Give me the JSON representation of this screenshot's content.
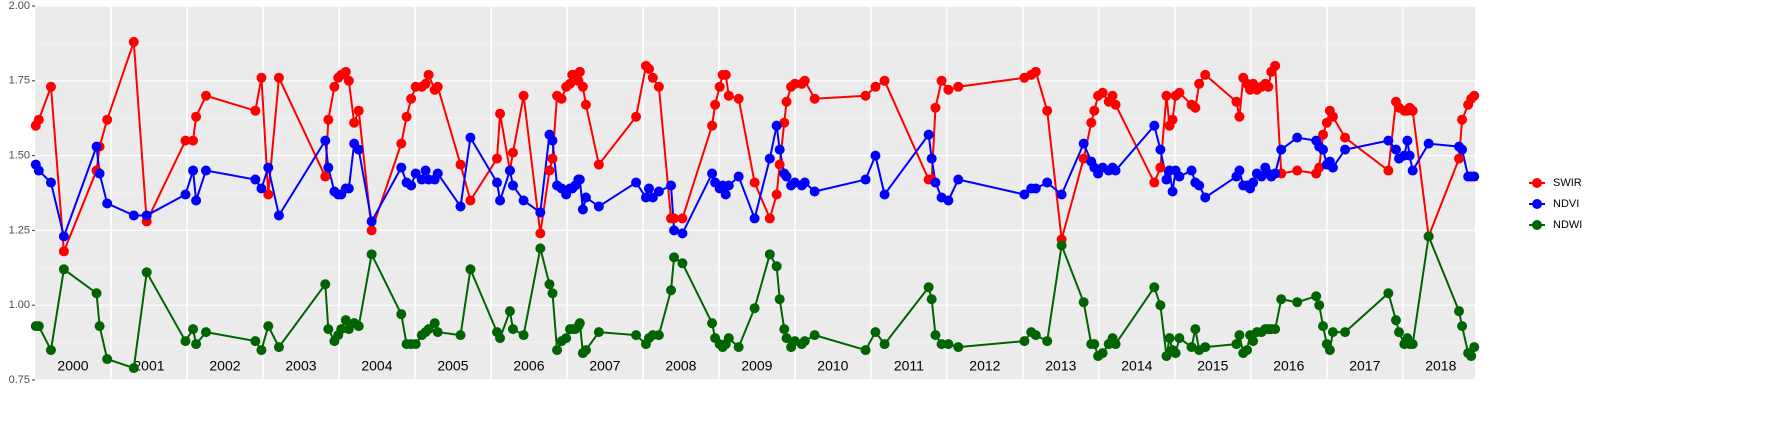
{
  "chart_data": {
    "type": "line",
    "x": [
      2000.01,
      2000.05,
      2000.21,
      2000.38,
      2000.81,
      2000.85,
      2000.95,
      2001.3,
      2001.47,
      2001.98,
      2002.08,
      2002.12,
      2002.25,
      2002.9,
      2002.98,
      2003.07,
      2003.21,
      2003.82,
      2003.86,
      2003.94,
      2003.99,
      2004.03,
      2004.09,
      2004.13,
      2004.2,
      2004.26,
      2004.43,
      2004.82,
      2004.89,
      2004.95,
      2005.01,
      2005.09,
      2005.14,
      2005.18,
      2005.26,
      2005.3,
      2005.6,
      2005.73,
      2006.08,
      2006.12,
      2006.25,
      2006.29,
      2006.43,
      2006.65,
      2006.77,
      2006.81,
      2006.87,
      2006.93,
      2006.99,
      2007.04,
      2007.07,
      2007.11,
      2007.15,
      2007.17,
      2007.21,
      2007.25,
      2007.42,
      2007.91,
      2008.04,
      2008.08,
      2008.13,
      2008.21,
      2008.37,
      2008.41,
      2008.52,
      2008.91,
      2008.95,
      2009.01,
      2009.05,
      2009.09,
      2009.13,
      2009.26,
      2009.47,
      2009.67,
      2009.76,
      2009.8,
      2009.86,
      2009.89,
      2009.95,
      2010.0,
      2010.09,
      2010.13,
      2010.26,
      2010.93,
      2011.06,
      2011.18,
      2011.76,
      2011.8,
      2011.85,
      2011.93,
      2012.02,
      2012.15,
      2013.02,
      2013.11,
      2013.17,
      2013.32,
      2013.51,
      2013.8,
      2013.9,
      2013.94,
      2013.99,
      2014.05,
      2014.13,
      2014.18,
      2014.22,
      2014.73,
      2014.81,
      2014.89,
      2014.93,
      2014.97,
      2015.01,
      2015.06,
      2015.22,
      2015.27,
      2015.32,
      2015.4,
      2015.81,
      2015.85,
      2015.9,
      2015.95,
      2015.99,
      2016.03,
      2016.08,
      2016.14,
      2016.19,
      2016.23,
      2016.27,
      2016.32,
      2016.4,
      2016.61,
      2016.86,
      2016.9,
      2016.95,
      2017.0,
      2017.04,
      2017.08,
      2017.24,
      2017.81,
      2017.91,
      2017.95,
      2018.02,
      2018.06,
      2018.09,
      2018.13,
      2018.34,
      2018.74,
      2018.78,
      2018.86,
      2018.9,
      2018.94
    ],
    "series": [
      {
        "name": "SWIR",
        "color": "#ff0000",
        "values": [
          1.6,
          1.62,
          1.73,
          1.18,
          1.45,
          1.53,
          1.62,
          1.88,
          1.28,
          1.55,
          1.55,
          1.63,
          1.7,
          1.65,
          1.76,
          1.37,
          1.76,
          1.43,
          1.62,
          1.73,
          1.76,
          1.77,
          1.78,
          1.75,
          1.61,
          1.65,
          1.25,
          1.54,
          1.63,
          1.69,
          1.73,
          1.73,
          1.74,
          1.77,
          1.72,
          1.73,
          1.47,
          1.35,
          1.49,
          1.64,
          1.45,
          1.51,
          1.7,
          1.24,
          1.45,
          1.49,
          1.7,
          1.69,
          1.73,
          1.74,
          1.77,
          1.77,
          1.75,
          1.78,
          1.73,
          1.67,
          1.47,
          1.63,
          1.8,
          1.79,
          1.76,
          1.73,
          1.29,
          1.29,
          1.29,
          1.6,
          1.67,
          1.73,
          1.77,
          1.77,
          1.7,
          1.69,
          1.41,
          1.29,
          1.37,
          1.47,
          1.61,
          1.68,
          1.73,
          1.74,
          1.74,
          1.75,
          1.69,
          1.7,
          1.73,
          1.75,
          1.42,
          1.42,
          1.66,
          1.75,
          1.72,
          1.73,
          1.76,
          1.77,
          1.78,
          1.65,
          1.22,
          1.49,
          1.61,
          1.65,
          1.7,
          1.71,
          1.68,
          1.7,
          1.67,
          1.41,
          1.46,
          1.7,
          1.6,
          1.62,
          1.7,
          1.71,
          1.67,
          1.66,
          1.74,
          1.77,
          1.68,
          1.63,
          1.76,
          1.74,
          1.72,
          1.74,
          1.72,
          1.73,
          1.74,
          1.73,
          1.78,
          1.8,
          1.44,
          1.45,
          1.44,
          1.46,
          1.57,
          1.61,
          1.65,
          1.63,
          1.56,
          1.45,
          1.68,
          1.66,
          1.65,
          1.65,
          1.66,
          1.65,
          1.23,
          1.49,
          1.62,
          1.67,
          1.69,
          1.7
        ]
      },
      {
        "name": "NDVI",
        "color": "#0000ff",
        "values": [
          1.47,
          1.45,
          1.41,
          1.23,
          1.53,
          1.44,
          1.34,
          1.3,
          1.3,
          1.37,
          1.45,
          1.35,
          1.45,
          1.42,
          1.39,
          1.46,
          1.3,
          1.55,
          1.46,
          1.38,
          1.37,
          1.37,
          1.39,
          1.39,
          1.54,
          1.52,
          1.28,
          1.46,
          1.41,
          1.4,
          1.44,
          1.42,
          1.45,
          1.42,
          1.42,
          1.44,
          1.33,
          1.56,
          1.41,
          1.35,
          1.45,
          1.4,
          1.35,
          1.31,
          1.57,
          1.55,
          1.4,
          1.39,
          1.37,
          1.39,
          1.39,
          1.4,
          1.42,
          1.42,
          1.32,
          1.36,
          1.33,
          1.41,
          1.36,
          1.39,
          1.36,
          1.38,
          1.4,
          1.25,
          1.24,
          1.44,
          1.41,
          1.39,
          1.4,
          1.37,
          1.4,
          1.43,
          1.29,
          1.49,
          1.6,
          1.52,
          1.44,
          1.43,
          1.4,
          1.41,
          1.4,
          1.41,
          1.38,
          1.42,
          1.5,
          1.37,
          1.57,
          1.49,
          1.41,
          1.36,
          1.35,
          1.42,
          1.37,
          1.39,
          1.39,
          1.41,
          1.37,
          1.54,
          1.48,
          1.46,
          1.44,
          1.46,
          1.45,
          1.46,
          1.45,
          1.6,
          1.52,
          1.42,
          1.45,
          1.38,
          1.45,
          1.43,
          1.45,
          1.41,
          1.4,
          1.36,
          1.43,
          1.45,
          1.4,
          1.4,
          1.39,
          1.41,
          1.44,
          1.43,
          1.46,
          1.44,
          1.43,
          1.44,
          1.52,
          1.56,
          1.55,
          1.53,
          1.52,
          1.47,
          1.48,
          1.46,
          1.52,
          1.55,
          1.52,
          1.49,
          1.5,
          1.55,
          1.5,
          1.45,
          1.54,
          1.53,
          1.52,
          1.43,
          1.43,
          1.43
        ]
      },
      {
        "name": "NDWI",
        "color": "#006400",
        "values": [
          0.93,
          0.93,
          0.85,
          1.12,
          1.04,
          0.93,
          0.82,
          0.79,
          1.11,
          0.88,
          0.92,
          0.87,
          0.91,
          0.88,
          0.85,
          0.93,
          0.86,
          1.07,
          0.92,
          0.88,
          0.9,
          0.92,
          0.95,
          0.92,
          0.94,
          0.93,
          1.17,
          0.97,
          0.87,
          0.87,
          0.87,
          0.9,
          0.91,
          0.92,
          0.94,
          0.91,
          0.9,
          1.12,
          0.91,
          0.89,
          0.98,
          0.92,
          0.9,
          1.19,
          1.07,
          1.04,
          0.85,
          0.88,
          0.89,
          0.92,
          0.92,
          0.92,
          0.93,
          0.94,
          0.84,
          0.85,
          0.91,
          0.9,
          0.87,
          0.89,
          0.9,
          0.9,
          1.05,
          1.16,
          1.14,
          0.94,
          0.89,
          0.87,
          0.86,
          0.87,
          0.89,
          0.86,
          0.99,
          1.17,
          1.13,
          1.02,
          0.92,
          0.89,
          0.86,
          0.88,
          0.87,
          0.88,
          0.9,
          0.85,
          0.91,
          0.87,
          1.06,
          1.02,
          0.9,
          0.87,
          0.87,
          0.86,
          0.88,
          0.91,
          0.9,
          0.88,
          1.2,
          1.01,
          0.87,
          0.87,
          0.83,
          0.84,
          0.87,
          0.89,
          0.87,
          1.06,
          1.0,
          0.83,
          0.89,
          0.85,
          0.84,
          0.89,
          0.86,
          0.92,
          0.85,
          0.86,
          0.87,
          0.9,
          0.84,
          0.85,
          0.9,
          0.88,
          0.91,
          0.91,
          0.92,
          0.92,
          0.92,
          0.92,
          1.02,
          1.01,
          1.03,
          1.0,
          0.93,
          0.87,
          0.85,
          0.91,
          0.91,
          1.04,
          0.95,
          0.91,
          0.87,
          0.89,
          0.87,
          0.87,
          1.23,
          0.98,
          0.93,
          0.84,
          0.83,
          0.86
        ]
      }
    ],
    "xlim": [
      2000.0,
      2018.95
    ],
    "xticks": [
      2001,
      2002,
      2003,
      2004,
      2005,
      2006,
      2007,
      2008,
      2009,
      2010,
      2011,
      2012,
      2013,
      2014,
      2015,
      2016,
      2017,
      2018
    ],
    "ylim": [
      0.75,
      2.0
    ],
    "yticks": [
      {
        "value": 0.75,
        "label": "0.75"
      },
      {
        "value": 1.0,
        "label": "1.00"
      },
      {
        "value": 1.25,
        "label": "1.25"
      },
      {
        "value": 1.5,
        "label": "1.50"
      },
      {
        "value": 1.75,
        "label": "1.75"
      },
      {
        "value": 2.0,
        "label": "2.00"
      }
    ],
    "annotations": [
      {
        "text": "2000",
        "x": 2000.5
      },
      {
        "text": "2001",
        "x": 2001.5
      },
      {
        "text": "2002",
        "x": 2002.5
      },
      {
        "text": "2003",
        "x": 2003.5
      },
      {
        "text": "2004",
        "x": 2004.5
      },
      {
        "text": "2005",
        "x": 2005.5
      },
      {
        "text": "2006",
        "x": 2006.5
      },
      {
        "text": "2007",
        "x": 2007.5
      },
      {
        "text": "2008",
        "x": 2008.5
      },
      {
        "text": "2009",
        "x": 2009.5
      },
      {
        "text": "2010",
        "x": 2010.5
      },
      {
        "text": "2011",
        "x": 2011.5
      },
      {
        "text": "2012",
        "x": 2012.5
      },
      {
        "text": "2013",
        "x": 2013.5
      },
      {
        "text": "2014",
        "x": 2014.5
      },
      {
        "text": "2015",
        "x": 2015.5
      },
      {
        "text": "2016",
        "x": 2016.5
      },
      {
        "text": "2017",
        "x": 2017.5
      },
      {
        "text": "2018",
        "x": 2018.5
      }
    ],
    "grid": true,
    "legend": "right"
  }
}
